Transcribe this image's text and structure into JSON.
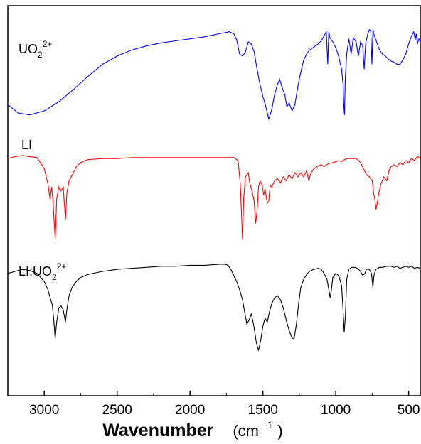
{
  "chart_data": {
    "type": "line",
    "title": "",
    "xlabel": "Wavenumber",
    "xunit_base": "(cm",
    "xunit_exp": "-1",
    "xunit_close": ")",
    "ylabel": "",
    "xlim": [
      3250,
      420
    ],
    "x_reversed": true,
    "yaxis_ticks": false,
    "grid": false,
    "xticks": [
      "3000",
      "2500",
      "2000",
      "1500",
      "1000",
      "500"
    ],
    "xtick_values": [
      3000,
      2500,
      2000,
      1500,
      1000,
      500
    ],
    "series": [
      {
        "name_parts": {
          "base": "UO",
          "sub": "2",
          "sup": "2+"
        },
        "color": "#0000ff",
        "offset": 0.72,
        "baseline": 1.0,
        "points": [
          [
            3250,
            0.1
          ],
          [
            3180,
            0.02
          ],
          [
            3100,
            0.0
          ],
          [
            3000,
            0.04
          ],
          [
            2900,
            0.13
          ],
          [
            2800,
            0.25
          ],
          [
            2700,
            0.38
          ],
          [
            2600,
            0.5
          ],
          [
            2500,
            0.58
          ],
          [
            2400,
            0.64
          ],
          [
            2300,
            0.68
          ],
          [
            2200,
            0.71
          ],
          [
            2100,
            0.73
          ],
          [
            2000,
            0.75
          ],
          [
            1900,
            0.77
          ],
          [
            1800,
            0.8
          ],
          [
            1730,
            0.82
          ],
          [
            1700,
            0.8
          ],
          [
            1680,
            0.74
          ],
          [
            1660,
            0.6
          ],
          [
            1640,
            0.58
          ],
          [
            1620,
            0.62
          ],
          [
            1600,
            0.72
          ],
          [
            1580,
            0.7
          ],
          [
            1560,
            0.62
          ],
          [
            1540,
            0.45
          ],
          [
            1520,
            0.3
          ],
          [
            1500,
            0.18
          ],
          [
            1480,
            0.08
          ],
          [
            1460,
            -0.04
          ],
          [
            1440,
            0.05
          ],
          [
            1420,
            0.2
          ],
          [
            1400,
            0.3
          ],
          [
            1385,
            0.35
          ],
          [
            1370,
            0.28
          ],
          [
            1350,
            0.2
          ],
          [
            1335,
            0.08
          ],
          [
            1320,
            0.12
          ],
          [
            1300,
            0.04
          ],
          [
            1280,
            0.1
          ],
          [
            1260,
            0.28
          ],
          [
            1240,
            0.42
          ],
          [
            1220,
            0.54
          ],
          [
            1200,
            0.6
          ],
          [
            1180,
            0.64
          ],
          [
            1150,
            0.67
          ],
          [
            1120,
            0.7
          ],
          [
            1100,
            0.73
          ],
          [
            1080,
            0.78
          ],
          [
            1065,
            0.82
          ],
          [
            1055,
            0.5
          ],
          [
            1048,
            0.82
          ],
          [
            1040,
            0.76
          ],
          [
            1020,
            0.72
          ],
          [
            1000,
            0.66
          ],
          [
            980,
            0.58
          ],
          [
            960,
            0.45
          ],
          [
            950,
            0.3
          ],
          [
            945,
            0.1
          ],
          [
            940,
            0.0
          ],
          [
            935,
            0.35
          ],
          [
            925,
            0.6
          ],
          [
            910,
            0.75
          ],
          [
            895,
            0.6
          ],
          [
            880,
            0.76
          ],
          [
            860,
            0.72
          ],
          [
            845,
            0.58
          ],
          [
            830,
            0.72
          ],
          [
            815,
            0.68
          ],
          [
            805,
            0.45
          ],
          [
            795,
            0.7
          ],
          [
            780,
            0.8
          ],
          [
            770,
            0.84
          ],
          [
            760,
            0.83
          ],
          [
            752,
            0.5
          ],
          [
            745,
            0.84
          ],
          [
            735,
            0.78
          ],
          [
            720,
            0.72
          ],
          [
            700,
            0.64
          ],
          [
            680,
            0.6
          ],
          [
            660,
            0.58
          ],
          [
            640,
            0.55
          ],
          [
            620,
            0.53
          ],
          [
            600,
            0.52
          ],
          [
            580,
            0.5
          ],
          [
            560,
            0.5
          ],
          [
            540,
            0.54
          ],
          [
            520,
            0.6
          ],
          [
            500,
            0.7
          ],
          [
            480,
            0.78
          ],
          [
            465,
            0.82
          ],
          [
            455,
            0.74
          ],
          [
            448,
            0.8
          ],
          [
            440,
            0.7
          ],
          [
            430,
            0.75
          ],
          [
            420,
            0.72
          ]
        ]
      },
      {
        "name_parts": {
          "base": "LI",
          "sub": "",
          "sup": ""
        },
        "color": "#ff0000",
        "offset": 0.4,
        "baseline": 1.0,
        "points": [
          [
            3250,
            0.8
          ],
          [
            3200,
            0.82
          ],
          [
            3150,
            0.83
          ],
          [
            3100,
            0.82
          ],
          [
            3050,
            0.81
          ],
          [
            3000,
            0.7
          ],
          [
            2975,
            0.55
          ],
          [
            2960,
            0.4
          ],
          [
            2950,
            0.52
          ],
          [
            2940,
            0.38
          ],
          [
            2925,
            0.0
          ],
          [
            2915,
            0.4
          ],
          [
            2900,
            0.52
          ],
          [
            2885,
            0.48
          ],
          [
            2870,
            0.52
          ],
          [
            2855,
            0.2
          ],
          [
            2845,
            0.46
          ],
          [
            2830,
            0.58
          ],
          [
            2800,
            0.66
          ],
          [
            2780,
            0.72
          ],
          [
            2750,
            0.76
          ],
          [
            2700,
            0.79
          ],
          [
            2600,
            0.8
          ],
          [
            2500,
            0.8
          ],
          [
            2400,
            0.81
          ],
          [
            2300,
            0.81
          ],
          [
            2200,
            0.81
          ],
          [
            2100,
            0.81
          ],
          [
            2000,
            0.81
          ],
          [
            1900,
            0.81
          ],
          [
            1800,
            0.81
          ],
          [
            1700,
            0.81
          ],
          [
            1670,
            0.78
          ],
          [
            1655,
            0.55
          ],
          [
            1645,
            0.2
          ],
          [
            1640,
            0.0
          ],
          [
            1632,
            0.4
          ],
          [
            1620,
            0.62
          ],
          [
            1600,
            0.66
          ],
          [
            1590,
            0.56
          ],
          [
            1575,
            0.48
          ],
          [
            1560,
            0.38
          ],
          [
            1550,
            0.16
          ],
          [
            1540,
            0.28
          ],
          [
            1530,
            0.52
          ],
          [
            1520,
            0.58
          ],
          [
            1505,
            0.54
          ],
          [
            1495,
            0.44
          ],
          [
            1485,
            0.5
          ],
          [
            1470,
            0.36
          ],
          [
            1460,
            0.38
          ],
          [
            1450,
            0.54
          ],
          [
            1440,
            0.52
          ],
          [
            1420,
            0.58
          ],
          [
            1400,
            0.6
          ],
          [
            1380,
            0.56
          ],
          [
            1360,
            0.62
          ],
          [
            1340,
            0.58
          ],
          [
            1320,
            0.64
          ],
          [
            1300,
            0.6
          ],
          [
            1280,
            0.66
          ],
          [
            1260,
            0.62
          ],
          [
            1240,
            0.66
          ],
          [
            1220,
            0.62
          ],
          [
            1200,
            0.68
          ],
          [
            1185,
            0.58
          ],
          [
            1170,
            0.66
          ],
          [
            1150,
            0.7
          ],
          [
            1130,
            0.72
          ],
          [
            1100,
            0.74
          ],
          [
            1080,
            0.72
          ],
          [
            1050,
            0.75
          ],
          [
            1020,
            0.76
          ],
          [
            1000,
            0.77
          ],
          [
            980,
            0.78
          ],
          [
            960,
            0.77
          ],
          [
            940,
            0.79
          ],
          [
            920,
            0.8
          ],
          [
            900,
            0.8
          ],
          [
            880,
            0.8
          ],
          [
            860,
            0.8
          ],
          [
            850,
            0.79
          ],
          [
            830,
            0.76
          ],
          [
            810,
            0.7
          ],
          [
            790,
            0.64
          ],
          [
            770,
            0.62
          ],
          [
            750,
            0.58
          ],
          [
            740,
            0.46
          ],
          [
            732,
            0.4
          ],
          [
            724,
            0.3
          ],
          [
            715,
            0.36
          ],
          [
            705,
            0.46
          ],
          [
            690,
            0.55
          ],
          [
            670,
            0.62
          ],
          [
            650,
            0.58
          ],
          [
            635,
            0.68
          ],
          [
            620,
            0.72
          ],
          [
            600,
            0.74
          ],
          [
            580,
            0.72
          ],
          [
            560,
            0.76
          ],
          [
            540,
            0.74
          ],
          [
            520,
            0.78
          ],
          [
            500,
            0.76
          ],
          [
            480,
            0.8
          ],
          [
            460,
            0.78
          ],
          [
            440,
            0.82
          ],
          [
            420,
            0.8
          ]
        ]
      },
      {
        "name_parts": {
          "base": "LI:UO",
          "sub": "2",
          "sup": "2+"
        },
        "color": "#000000",
        "offset": 0.09,
        "baseline": 1.0,
        "points": [
          [
            3250,
            0.86
          ],
          [
            3200,
            0.88
          ],
          [
            3150,
            0.9
          ],
          [
            3100,
            0.89
          ],
          [
            3050,
            0.86
          ],
          [
            3000,
            0.78
          ],
          [
            2975,
            0.7
          ],
          [
            2960,
            0.62
          ],
          [
            2945,
            0.55
          ],
          [
            2935,
            0.4
          ],
          [
            2925,
            0.22
          ],
          [
            2915,
            0.38
          ],
          [
            2900,
            0.52
          ],
          [
            2885,
            0.54
          ],
          [
            2870,
            0.5
          ],
          [
            2855,
            0.38
          ],
          [
            2845,
            0.5
          ],
          [
            2830,
            0.64
          ],
          [
            2810,
            0.72
          ],
          [
            2780,
            0.78
          ],
          [
            2750,
            0.82
          ],
          [
            2700,
            0.85
          ],
          [
            2600,
            0.88
          ],
          [
            2500,
            0.9
          ],
          [
            2400,
            0.91
          ],
          [
            2300,
            0.92
          ],
          [
            2200,
            0.93
          ],
          [
            2100,
            0.93
          ],
          [
            2000,
            0.94
          ],
          [
            1900,
            0.94
          ],
          [
            1800,
            0.95
          ],
          [
            1760,
            0.95
          ],
          [
            1740,
            0.94
          ],
          [
            1720,
            0.9
          ],
          [
            1700,
            0.84
          ],
          [
            1680,
            0.78
          ],
          [
            1660,
            0.7
          ],
          [
            1640,
            0.6
          ],
          [
            1625,
            0.48
          ],
          [
            1610,
            0.36
          ],
          [
            1595,
            0.4
          ],
          [
            1580,
            0.46
          ],
          [
            1570,
            0.4
          ],
          [
            1560,
            0.32
          ],
          [
            1545,
            0.18
          ],
          [
            1530,
            0.1
          ],
          [
            1515,
            0.2
          ],
          [
            1500,
            0.34
          ],
          [
            1485,
            0.42
          ],
          [
            1470,
            0.38
          ],
          [
            1455,
            0.48
          ],
          [
            1440,
            0.56
          ],
          [
            1420,
            0.62
          ],
          [
            1400,
            0.64
          ],
          [
            1380,
            0.6
          ],
          [
            1360,
            0.52
          ],
          [
            1340,
            0.4
          ],
          [
            1320,
            0.3
          ],
          [
            1300,
            0.22
          ],
          [
            1285,
            0.22
          ],
          [
            1270,
            0.36
          ],
          [
            1255,
            0.56
          ],
          [
            1240,
            0.72
          ],
          [
            1220,
            0.8
          ],
          [
            1200,
            0.85
          ],
          [
            1180,
            0.88
          ],
          [
            1150,
            0.9
          ],
          [
            1120,
            0.91
          ],
          [
            1100,
            0.9
          ],
          [
            1080,
            0.86
          ],
          [
            1060,
            0.8
          ],
          [
            1045,
            0.68
          ],
          [
            1038,
            0.62
          ],
          [
            1030,
            0.7
          ],
          [
            1020,
            0.82
          ],
          [
            1000,
            0.86
          ],
          [
            980,
            0.84
          ],
          [
            960,
            0.74
          ],
          [
            950,
            0.5
          ],
          [
            942,
            0.28
          ],
          [
            934,
            0.44
          ],
          [
            925,
            0.8
          ],
          [
            910,
            0.9
          ],
          [
            890,
            0.92
          ],
          [
            870,
            0.92
          ],
          [
            850,
            0.91
          ],
          [
            830,
            0.88
          ],
          [
            815,
            0.84
          ],
          [
            800,
            0.86
          ],
          [
            790,
            0.9
          ],
          [
            770,
            0.9
          ],
          [
            755,
            0.86
          ],
          [
            745,
            0.72
          ],
          [
            738,
            0.84
          ],
          [
            725,
            0.9
          ],
          [
            700,
            0.92
          ],
          [
            680,
            0.92
          ],
          [
            650,
            0.93
          ],
          [
            620,
            0.93
          ],
          [
            600,
            0.92
          ],
          [
            580,
            0.93
          ],
          [
            560,
            0.91
          ],
          [
            540,
            0.92
          ],
          [
            520,
            0.93
          ],
          [
            500,
            0.92
          ],
          [
            480,
            0.93
          ],
          [
            460,
            0.91
          ],
          [
            440,
            0.92
          ],
          [
            420,
            0.91
          ]
        ]
      }
    ]
  }
}
